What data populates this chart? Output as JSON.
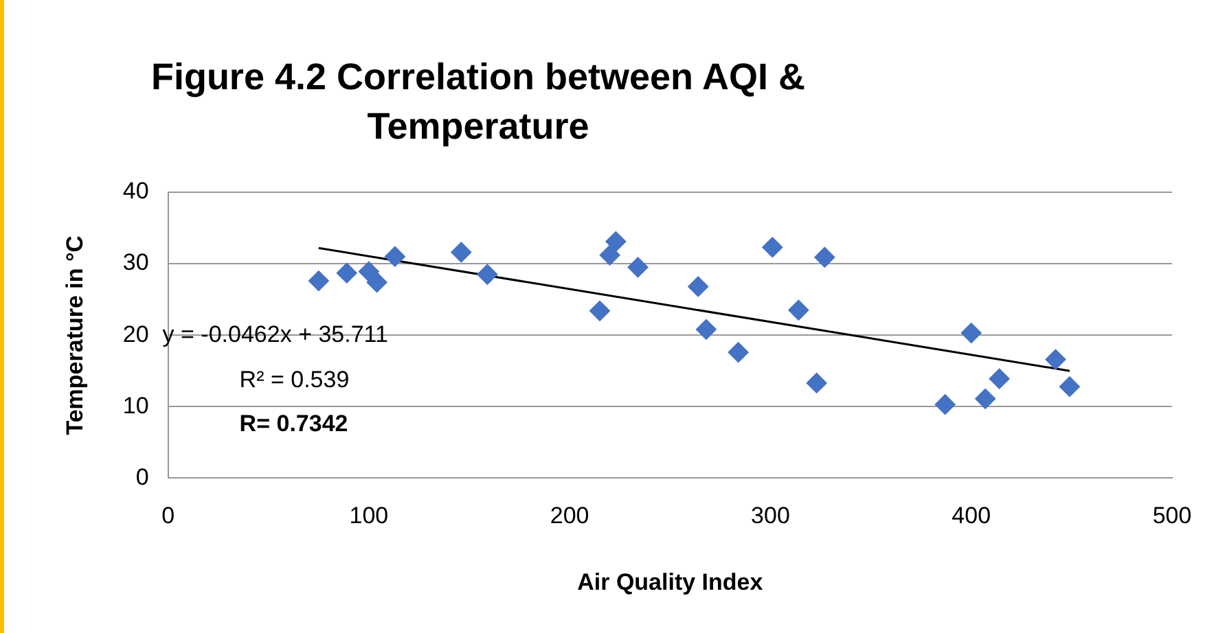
{
  "chart_data": {
    "type": "scatter",
    "title": "Figure 4.2 Correlation between AQI & Temperature",
    "xlabel": "Air Quality Index",
    "ylabel": "Temperature in °C",
    "series": [
      {
        "marker": "diamond",
        "color": "#4472c4",
        "x": [
          75,
          89,
          100,
          104,
          113,
          146,
          159,
          215,
          220,
          223,
          234,
          264,
          268,
          284,
          301,
          314,
          323,
          327,
          387,
          400,
          407,
          414,
          442,
          449
        ],
        "values": [
          27.6,
          28.7,
          28.9,
          27.4,
          31.0,
          31.6,
          28.5,
          23.4,
          31.2,
          33.1,
          29.5,
          26.8,
          20.8,
          17.6,
          32.3,
          23.5,
          13.3,
          30.9,
          10.3,
          20.3,
          11.1,
          13.9,
          16.6,
          12.8
        ]
      },
      {
        "type": "line",
        "marker": "none",
        "color": "#000000",
        "x": [
          75,
          449
        ],
        "values": [
          32.2,
          15.0
        ]
      }
    ],
    "annotations": [
      "y = -0.0462x + 35.711",
      "R² = 0.539",
      "R= 0.7342"
    ],
    "xlim": [
      0,
      500
    ],
    "xticks": [
      0,
      100,
      200,
      300,
      400,
      500
    ],
    "ylim": [
      0,
      40
    ],
    "yticks": [
      0,
      10,
      20,
      30,
      40
    ],
    "grid": "y",
    "legend": false
  }
}
